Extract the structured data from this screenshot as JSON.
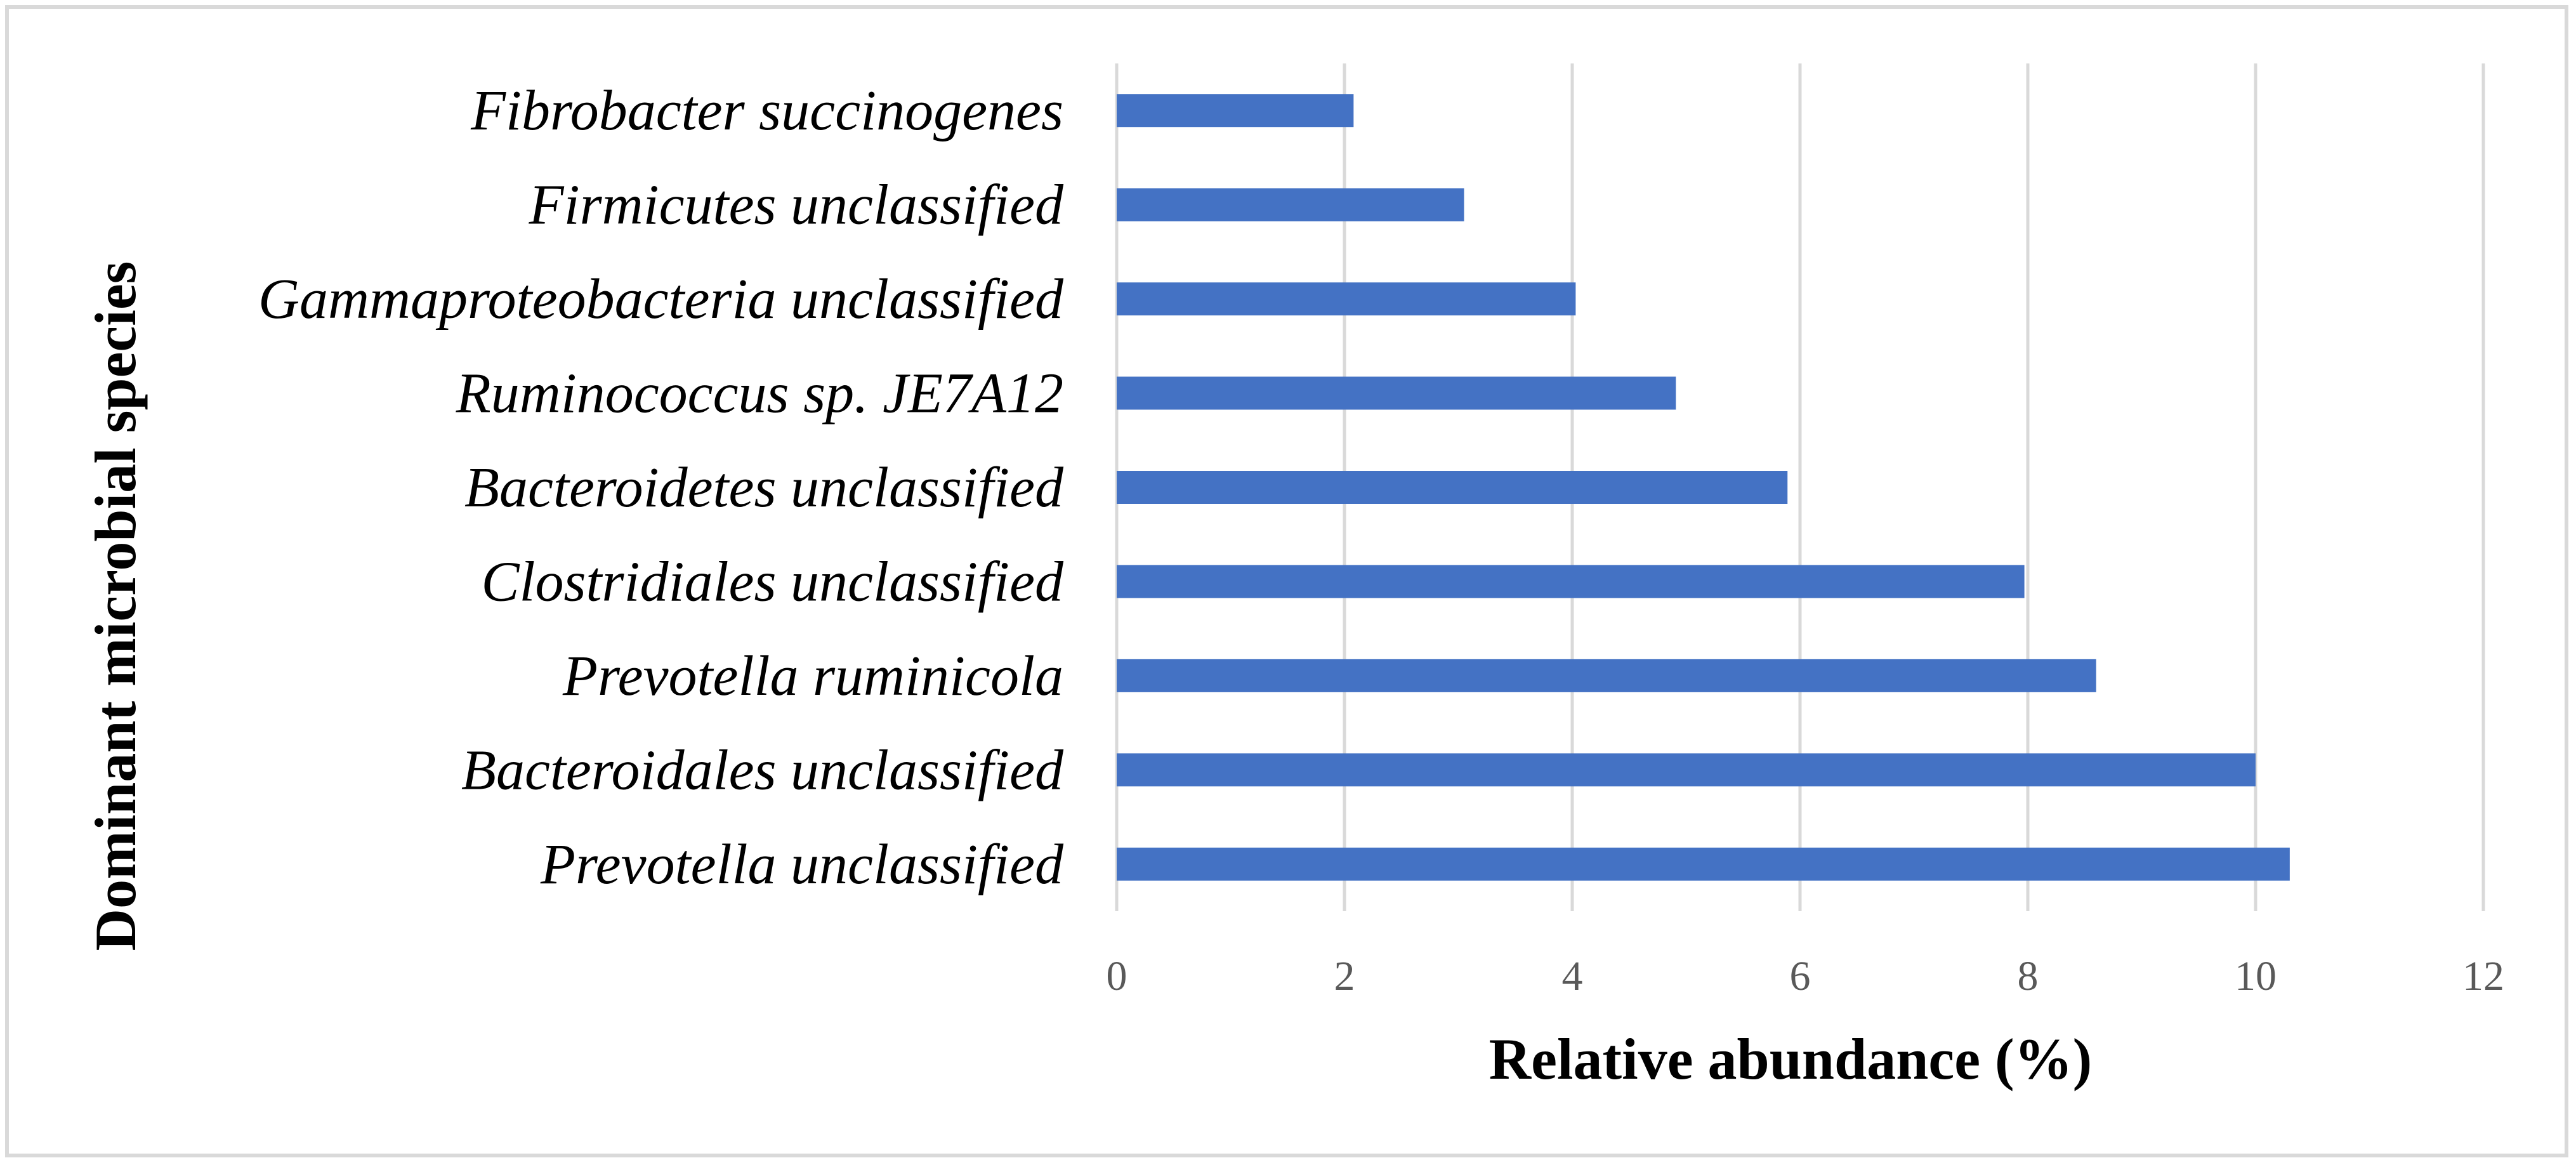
{
  "chart_data": {
    "type": "bar",
    "orientation": "horizontal",
    "categories": [
      "Fibrobacter succinogenes",
      "Firmicutes unclassified",
      "Gammaproteobacteria unclassified",
      "Ruminococcus sp. JE7A12",
      "Bacteroidetes unclassified",
      "Clostridiales unclassified",
      "Prevotella ruminicola",
      "Bacteroidales unclassified",
      "Prevotella unclassified"
    ],
    "values": [
      2.08,
      3.05,
      4.03,
      4.91,
      5.89,
      7.97,
      8.6,
      10.0,
      10.3
    ],
    "xlabel": "Relative abundance (%)",
    "ylabel": "Dominant microbial species",
    "xlim": [
      0,
      12
    ],
    "xticks": [
      "0",
      "2",
      "4",
      "6",
      "8",
      "10",
      "12"
    ],
    "grid": true,
    "legend": "none",
    "bar_color": "#4472c4",
    "grid_color": "#d9d9d9"
  }
}
